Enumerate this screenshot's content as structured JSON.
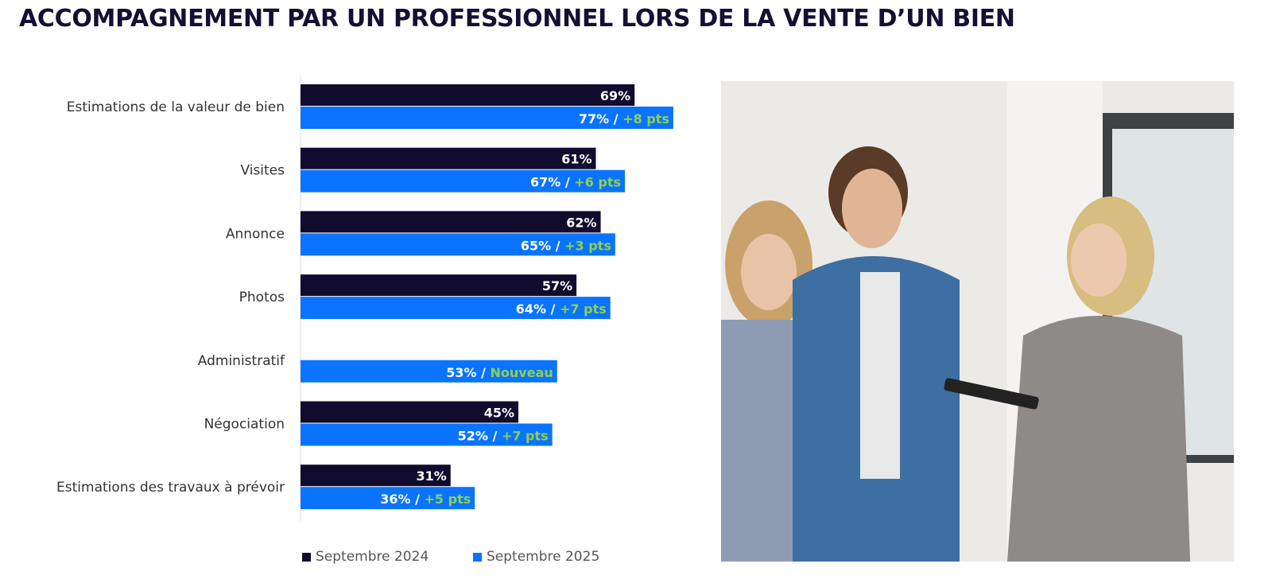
{
  "title": "ACCOMPAGNEMENT PAR UN PROFESSIONNEL LORS DE LA VENTE D’UN BIEN",
  "chart_data": {
    "type": "bar",
    "orientation": "horizontal",
    "categories": [
      "Estimations de la valeur de bien",
      "Visites",
      "Annonce",
      "Photos",
      "Administratif",
      "Négociation",
      "Estimations des travaux à prévoir"
    ],
    "series": [
      {
        "name": "Septembre 2024",
        "color": "#110b2e",
        "values": [
          69,
          61,
          62,
          57,
          null,
          45,
          31
        ]
      },
      {
        "name": "Septembre 2025",
        "color": "#0a74ff",
        "values": [
          77,
          67,
          65,
          64,
          53,
          52,
          36
        ]
      }
    ],
    "data_labels_2024": [
      "69%",
      "61%",
      "62%",
      "57%",
      "",
      "45%",
      "31%"
    ],
    "data_labels_2025": [
      "77% /",
      "67% /",
      "65% /",
      "64% /",
      "53% /",
      "52% /",
      "36% /"
    ],
    "evolution": [
      "+8 pts",
      "+6 pts",
      "+3 pts",
      "+7 pts",
      "Nouveau",
      "+7 pts",
      "+5 pts"
    ],
    "evolution_color": "#8fd14f",
    "xlim": [
      0,
      80
    ],
    "grid": false,
    "legend": "bottom"
  },
  "photo": {
    "description_icon": "photo-people-icon"
  }
}
